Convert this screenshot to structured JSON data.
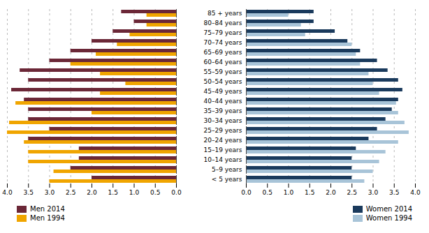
{
  "chart_data": {
    "type": "bar",
    "orientation": "horizontal",
    "categories": [
      "< 5 years",
      "5–9 years",
      "10–14 years",
      "15–19 years",
      "20–24 years",
      "25–29 years",
      "30–34 years",
      "35–39 years",
      "40–44 years",
      "45–49 years",
      "50–54 years",
      "55–59 years",
      "60–64 years",
      "65–69 years",
      "70–74 years",
      "75–79 years",
      "80–84 years",
      "85 + years"
    ],
    "series": [
      {
        "name": "Men 2014",
        "color": "#6b2737",
        "values": [
          2.0,
          2.5,
          2.3,
          2.3,
          3.5,
          3.0,
          3.5,
          3.5,
          3.6,
          3.9,
          3.5,
          3.7,
          3.0,
          2.5,
          2.0,
          1.5,
          1.0,
          1.3
        ]
      },
      {
        "name": "Men 1994",
        "color": "#f0a500",
        "values": [
          3.0,
          2.9,
          3.5,
          3.5,
          3.6,
          4.0,
          3.95,
          2.0,
          3.8,
          1.8,
          1.2,
          1.8,
          2.5,
          1.9,
          1.4,
          1.1,
          0.7,
          0.7
        ]
      },
      {
        "name": "Women 2014",
        "color": "#1a3a5c",
        "values": [
          2.5,
          2.5,
          2.5,
          2.6,
          2.9,
          3.1,
          3.3,
          3.45,
          3.6,
          3.7,
          3.6,
          3.35,
          3.1,
          2.7,
          2.4,
          2.1,
          1.6,
          1.6
        ]
      },
      {
        "name": "Women 1994",
        "color": "#a8c4d8",
        "values": [
          2.8,
          3.0,
          3.15,
          3.3,
          3.6,
          3.85,
          3.75,
          3.6,
          3.55,
          3.15,
          3.0,
          2.9,
          2.7,
          2.6,
          2.5,
          1.4,
          1.3,
          1.0
        ]
      }
    ],
    "xlim": [
      0,
      4.0
    ],
    "xticks": [
      {
        "value": 0.0,
        "label": "0.0"
      },
      0.5,
      {
        "value": 1.0,
        "label": "1.0"
      },
      1.5,
      {
        "value": 2.0,
        "label": "2.0"
      },
      2.5,
      {
        "value": 3.0,
        "label": "3.0"
      },
      3.5,
      {
        "value": 4.0,
        "label": "4.0"
      }
    ],
    "grid": true,
    "legend": "bottom"
  }
}
